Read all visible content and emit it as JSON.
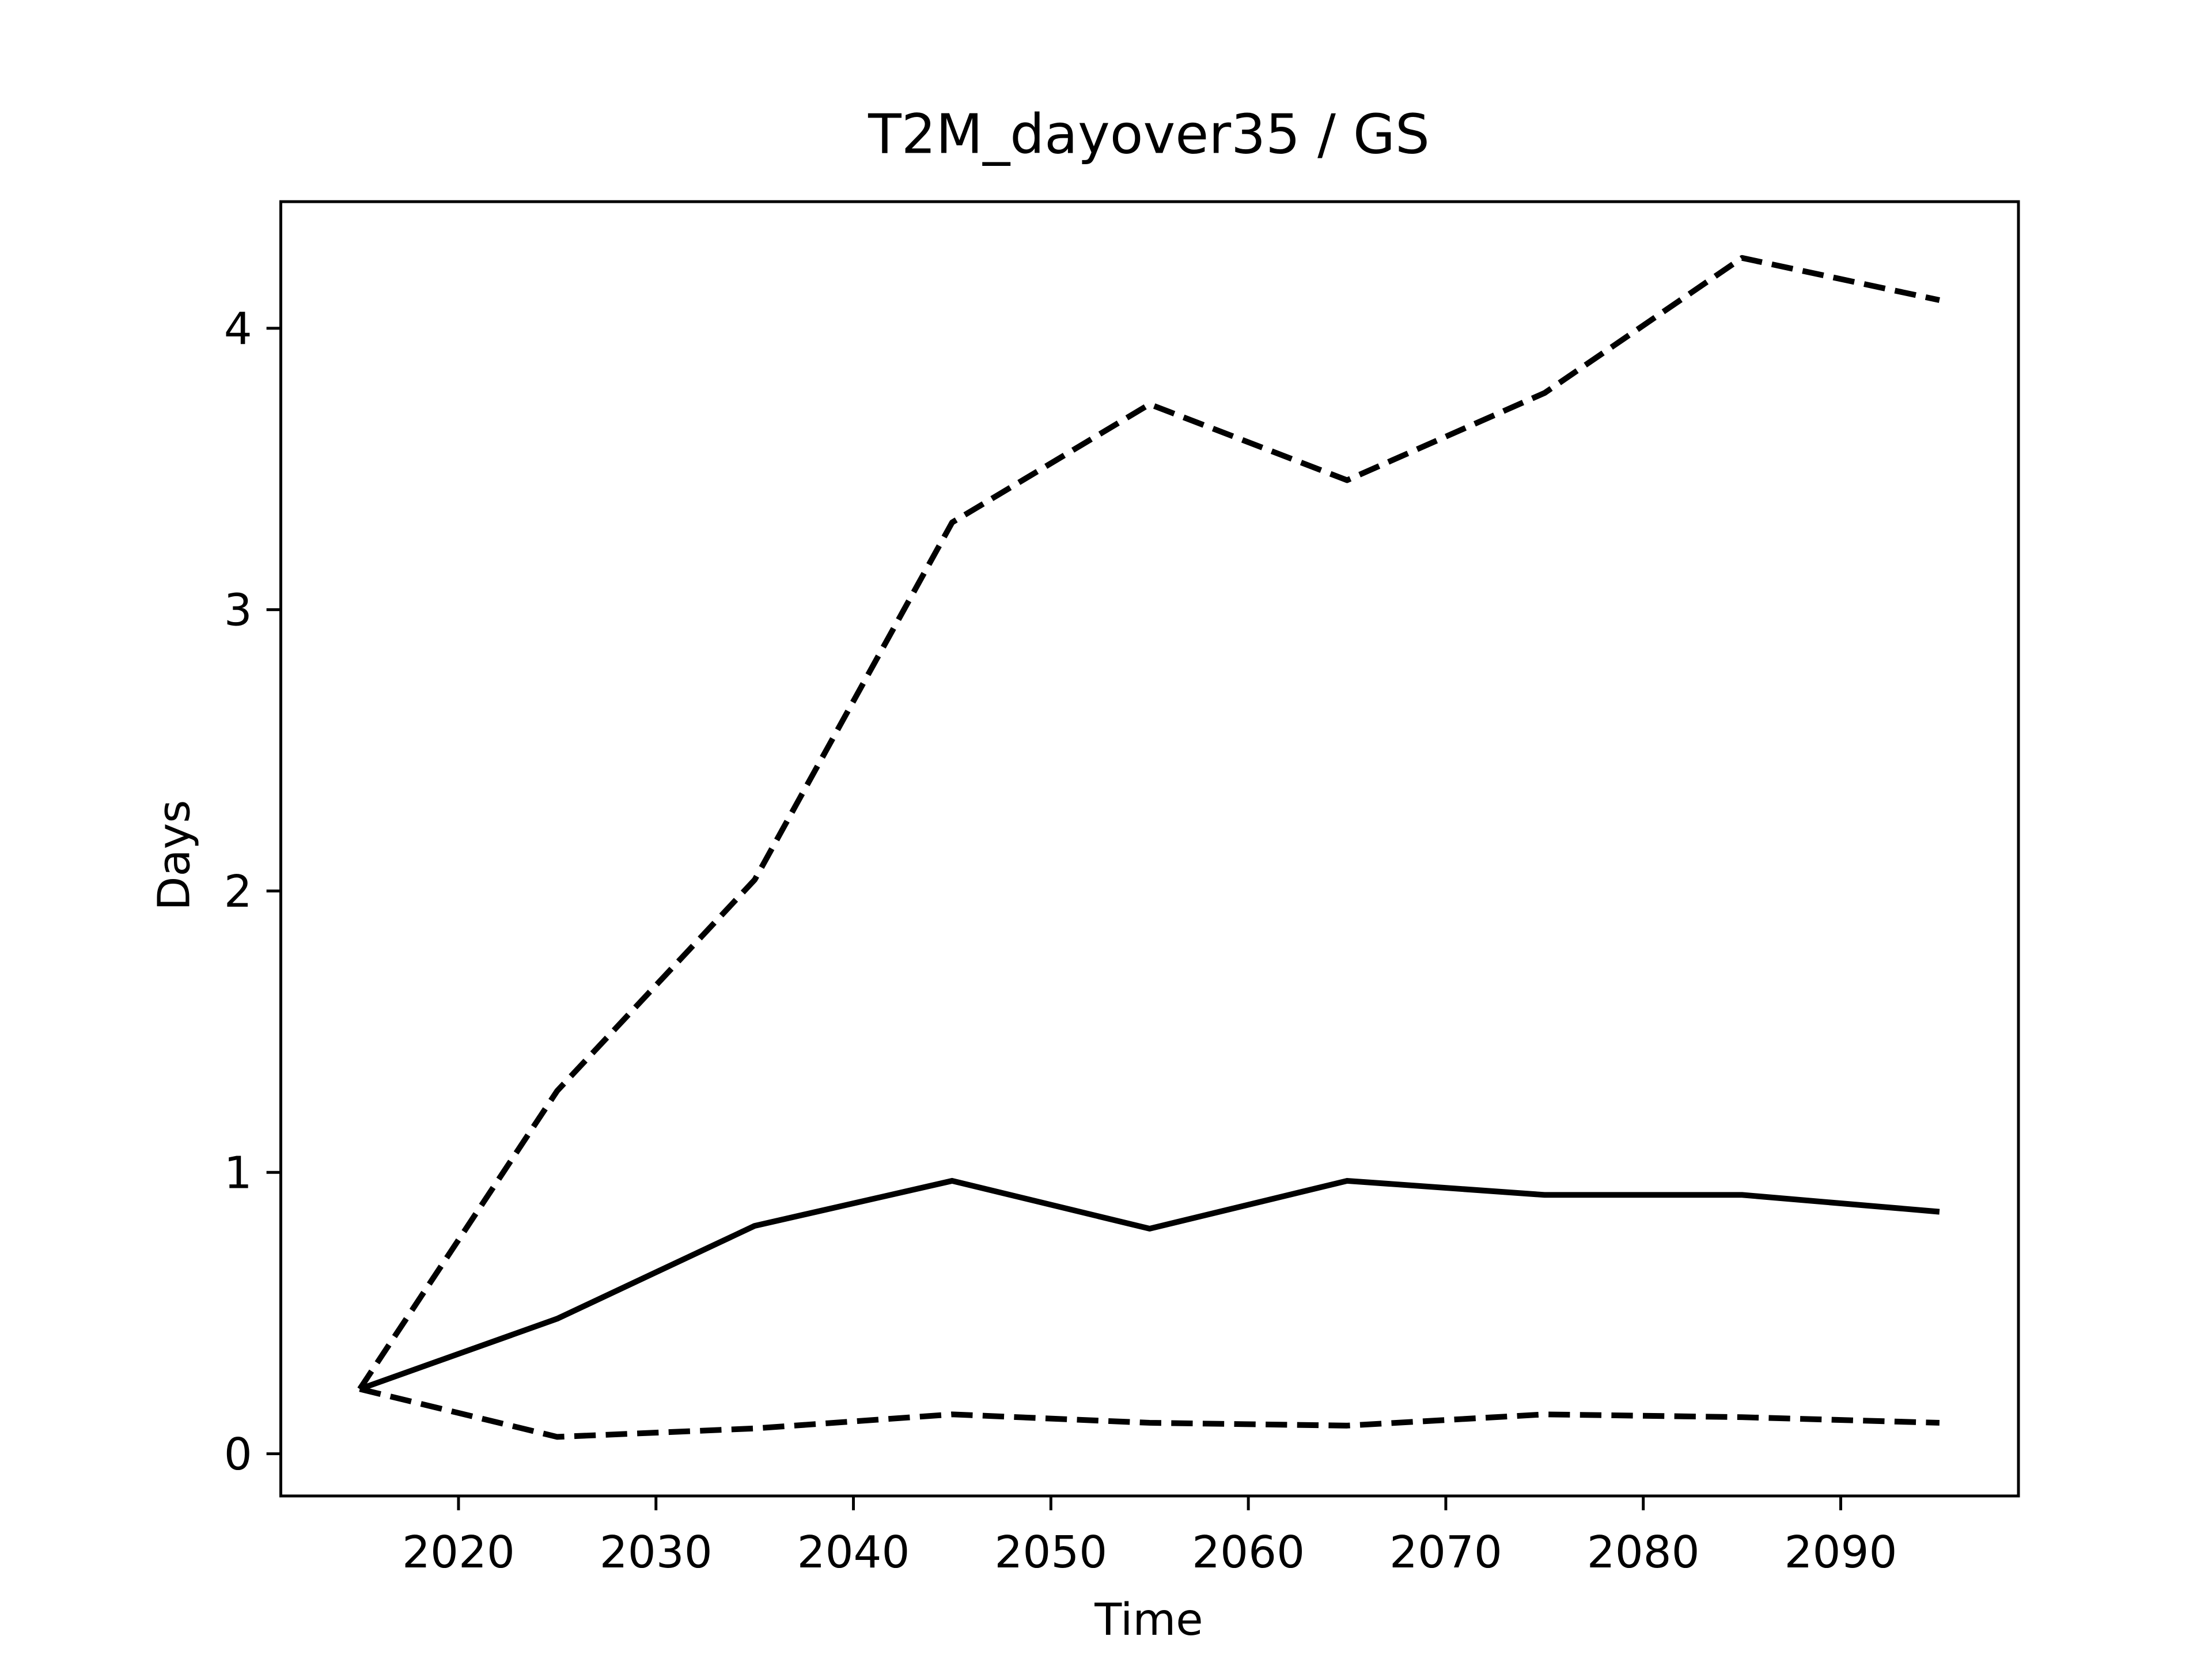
{
  "chart_data": {
    "type": "line",
    "title": "T2M_dayover35 / GS",
    "x_label": "Time",
    "y_label": "Days",
    "x": [
      2015,
      2025,
      2035,
      2045,
      2055,
      2065,
      2075,
      2085,
      2095
    ],
    "series": [
      {
        "color": "#000000",
        "dashed": false,
        "values": [
          0.23,
          0.48,
          0.81,
          0.97,
          0.8,
          0.97,
          0.92,
          0.92,
          0.86
        ]
      },
      {
        "color": "#000000",
        "dashed": true,
        "values": [
          0.23,
          1.29,
          2.04,
          3.31,
          3.73,
          3.46,
          3.77,
          4.25,
          4.1
        ]
      },
      {
        "color": "#000000",
        "dashed": true,
        "values": [
          0.23,
          0.06,
          0.09,
          0.14,
          0.11,
          0.1,
          0.14,
          0.13,
          0.11
        ]
      }
    ],
    "xlim": [
      2011,
      2099
    ],
    "ylim": [
      -0.15,
      4.45
    ],
    "xticks": [
      2020,
      2030,
      2040,
      2050,
      2060,
      2070,
      2080,
      2090
    ],
    "yticks": [
      0,
      1,
      2,
      3,
      4
    ]
  }
}
